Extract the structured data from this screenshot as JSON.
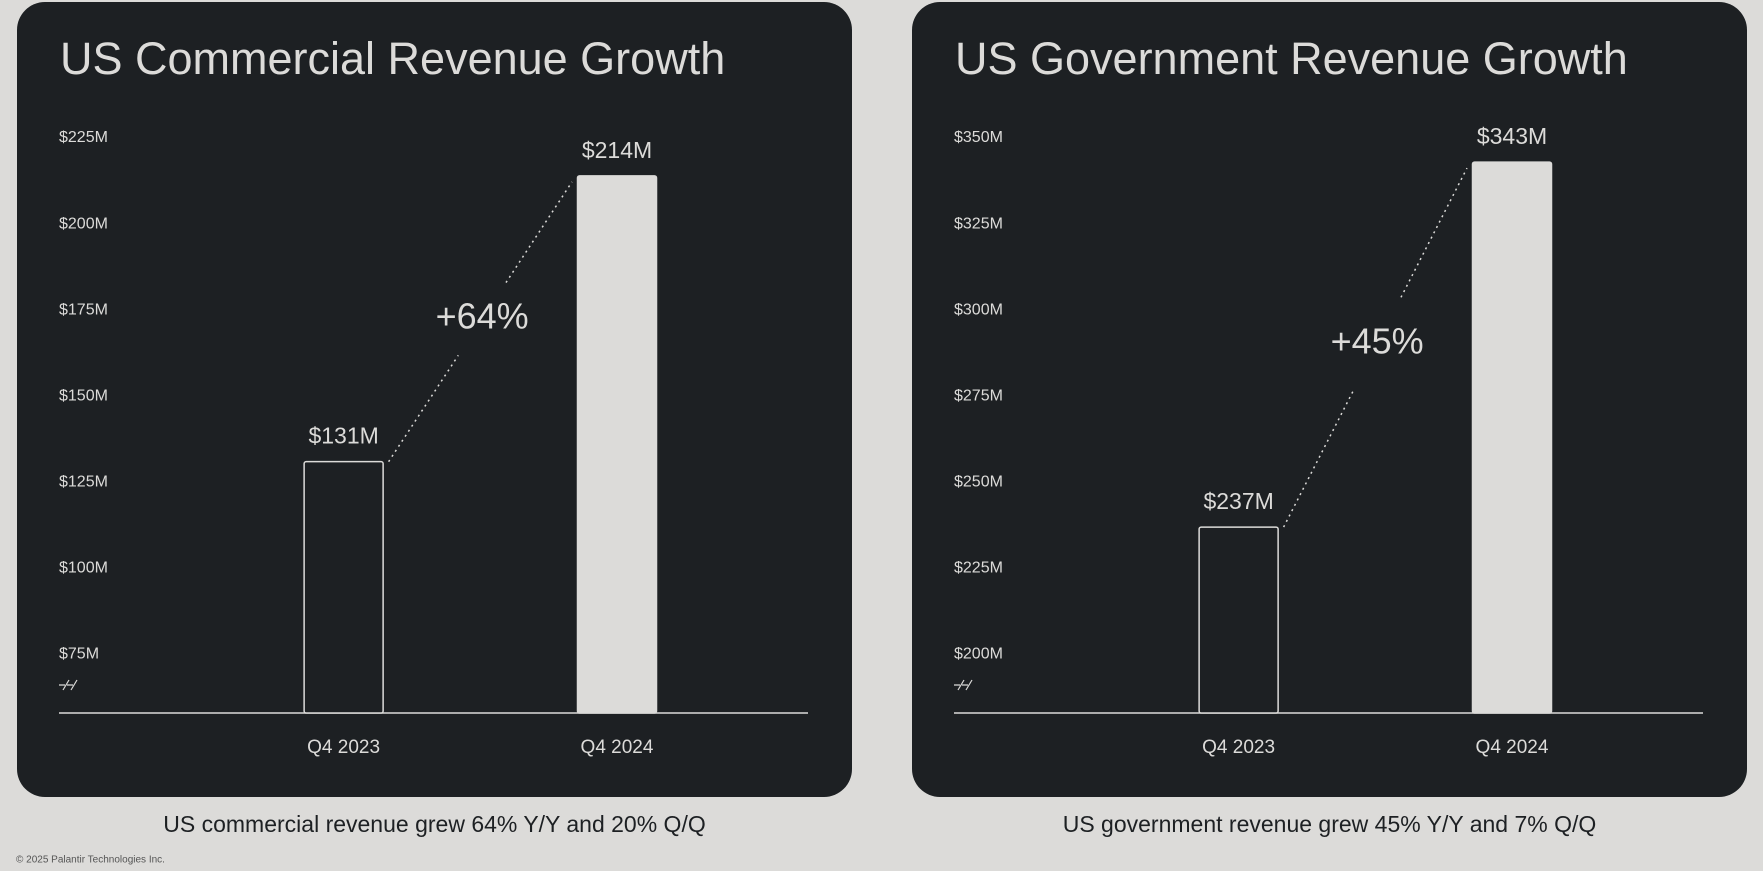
{
  "chart_data": [
    {
      "type": "bar",
      "title": "US Commercial Revenue Growth",
      "categories": [
        "Q4 2023",
        "Q4 2024"
      ],
      "values": [
        131,
        214
      ],
      "value_labels": [
        "$131M",
        "$214M"
      ],
      "colors": [
        "#1d2023",
        "#dcdbd9"
      ],
      "bar_edge_color": "#dcdbd9",
      "ylim": [
        58,
        225
      ],
      "yticks": [
        {
          "value": 75,
          "label": "$75M"
        },
        {
          "value": 100,
          "label": "$100M"
        },
        {
          "value": 125,
          "label": "$125M"
        },
        {
          "value": 150,
          "label": "$150M"
        },
        {
          "value": 175,
          "label": "$175M"
        },
        {
          "value": 200,
          "label": "$200M"
        },
        {
          "value": 225,
          "label": "$225M"
        }
      ],
      "annotation": "+64%",
      "caption": "US commercial revenue grew 64% Y/Y and 20% Q/Q"
    },
    {
      "type": "bar",
      "title": "US Government Revenue Growth",
      "categories": [
        "Q4 2023",
        "Q4 2024"
      ],
      "values": [
        237,
        343
      ],
      "value_labels": [
        "$237M",
        "$343M"
      ],
      "colors": [
        "#1d2023",
        "#dcdbd9"
      ],
      "bar_edge_color": "#dcdbd9",
      "ylim": [
        183,
        350
      ],
      "yticks": [
        {
          "value": 200,
          "label": "$200M"
        },
        {
          "value": 225,
          "label": "$225M"
        },
        {
          "value": 250,
          "label": "$250M"
        },
        {
          "value": 275,
          "label": "$275M"
        },
        {
          "value": 300,
          "label": "$300M"
        },
        {
          "value": 325,
          "label": "$325M"
        },
        {
          "value": 350,
          "label": "$350M"
        }
      ],
      "annotation": "+45%",
      "caption": "US government revenue grew 45% Y/Y and 7% Q/Q"
    }
  ],
  "footer": "© 2025 Palantir Technologies Inc."
}
